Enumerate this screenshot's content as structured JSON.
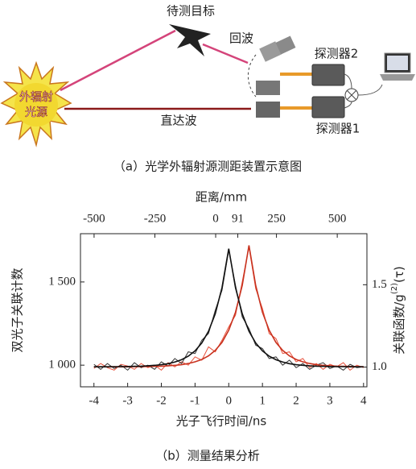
{
  "diagram": {
    "target": "待测目标",
    "echo": "回波",
    "detector2": "探测器2",
    "source": [
      "外辐射",
      "光源"
    ],
    "direct": "直达波",
    "detector1": "探测器1",
    "caption": "（a）光学外辐射源测距装置示意图"
  },
  "chart_data": {
    "type": "line",
    "xlabel": "光子飞行时间/ns",
    "x2label": "距离/mm",
    "ylabel": "双光子关联计数",
    "y2label": {
      "text": "关联函数/g",
      "superscript": "(2)",
      "suffix": "(τ)"
    },
    "caption": "（b）测量结果分析",
    "xlim": [
      -4.4,
      4.1
    ],
    "xticks": [
      -4,
      -3,
      -2,
      -1,
      0,
      1,
      2,
      3,
      4
    ],
    "x2lim": [
      -556,
      622
    ],
    "x2ticks": [
      -500,
      -250,
      0,
      91,
      250,
      500
    ],
    "ylim": [
      870,
      1790
    ],
    "yticks": [
      {
        "value": 1000,
        "label": "1 000"
      },
      {
        "value": 1500,
        "label": "1 500"
      }
    ],
    "y2lim": [
      0.88,
      1.81
    ],
    "y2ticks": [
      {
        "value": 1,
        "label": "1.0"
      },
      1.5
    ],
    "x": [
      -4,
      -3.8,
      -3.6,
      -3.4,
      -3.2,
      -3,
      -2.8,
      -2.6,
      -2.4,
      -2.2,
      -2,
      -1.8,
      -1.6,
      -1.4,
      -1.2,
      -1,
      -0.8,
      -0.6,
      -0.4,
      -0.2,
      0,
      0.2,
      0.4,
      0.6,
      0.8,
      1,
      1.2,
      1.4,
      1.6,
      1.8,
      2,
      2.2,
      2.4,
      2.6,
      2.8,
      3,
      3.2,
      3.4,
      3.6,
      3.8,
      4
    ],
    "series": [
      {
        "color": "#e8503a",
        "values": [
          980,
          1010,
          985,
          970,
          1005,
          995,
          975,
          1010,
          985,
          1000,
          970,
          1015,
          990,
          1020,
          1000,
          1050,
          1030,
          1110,
          1080,
          1150,
          1230,
          1300,
          1500,
          1710,
          1460,
          1340,
          1190,
          1160,
          1070,
          1080,
          1020,
          1040,
          985,
          1010,
          975,
          1005,
          990,
          1015,
          970,
          1000,
          985
        ]
      },
      {
        "color": "#333333",
        "values": [
          1005,
          975,
          1010,
          980,
          1000,
          970,
          1015,
          985,
          1000,
          975,
          1020,
          995,
          1040,
          1010,
          1080,
          1070,
          1150,
          1190,
          1330,
          1450,
          1690,
          1480,
          1290,
          1220,
          1120,
          1100,
          1040,
          1050,
          1000,
          1030,
          985,
          1010,
          975,
          1000,
          1015,
          980,
          995,
          970,
          1005,
          985,
          990
        ]
      },
      {
        "color": "#c8321f",
        "values": [
          990,
          990,
          990,
          990,
          990,
          990,
          991,
          991,
          992,
          993,
          994,
          996,
          999,
          1003,
          1010,
          1020,
          1034,
          1056,
          1089,
          1137,
          1210,
          1318,
          1479,
          1720,
          1479,
          1318,
          1210,
          1137,
          1089,
          1056,
          1034,
          1020,
          1010,
          1003,
          999,
          996,
          994,
          993,
          992,
          991,
          991
        ]
      },
      {
        "color": "#111111",
        "values": [
          990,
          990,
          990,
          991,
          991,
          992,
          993,
          994,
          996,
          999,
          1003,
          1009,
          1019,
          1033,
          1054,
          1086,
          1133,
          1204,
          1309,
          1466,
          1700,
          1466,
          1309,
          1204,
          1133,
          1086,
          1054,
          1033,
          1019,
          1009,
          1003,
          999,
          996,
          994,
          993,
          992,
          991,
          991,
          990,
          990,
          990
        ]
      }
    ]
  }
}
